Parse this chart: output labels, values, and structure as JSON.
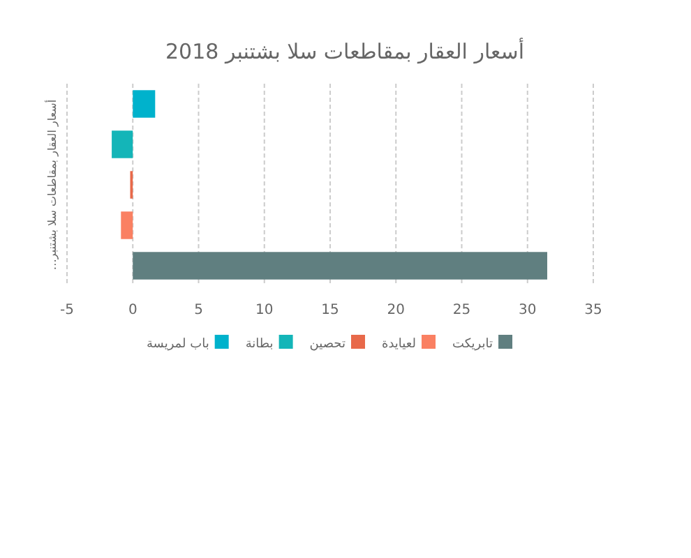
{
  "chart_data": {
    "type": "bar",
    "orientation": "horizontal",
    "title": "أسعار العقار بمقاطعات سلا بشتنبر 2018",
    "ylabel": "أسعار العقار بمقاطعات سلا بشتنبر…",
    "categories": [
      null
    ],
    "series": [
      {
        "name": "باب لمريسة",
        "color": "#00b2cc",
        "values": [
          1.7
        ]
      },
      {
        "name": "بطانة",
        "color": "#14b5b8",
        "values": [
          -1.6
        ]
      },
      {
        "name": "تحصين",
        "color": "#e8694a",
        "values": [
          -0.2
        ]
      },
      {
        "name": "لعيايدة",
        "color": "#fa8062",
        "values": [
          -0.9
        ]
      },
      {
        "name": "تابريكت",
        "color": "#607f80",
        "values": [
          31.5
        ]
      }
    ],
    "xlim": [
      -5,
      35
    ],
    "xticks": [
      -5,
      0,
      5,
      10,
      15,
      20,
      25,
      30,
      35
    ],
    "grid": "x",
    "legend": "bottom"
  }
}
